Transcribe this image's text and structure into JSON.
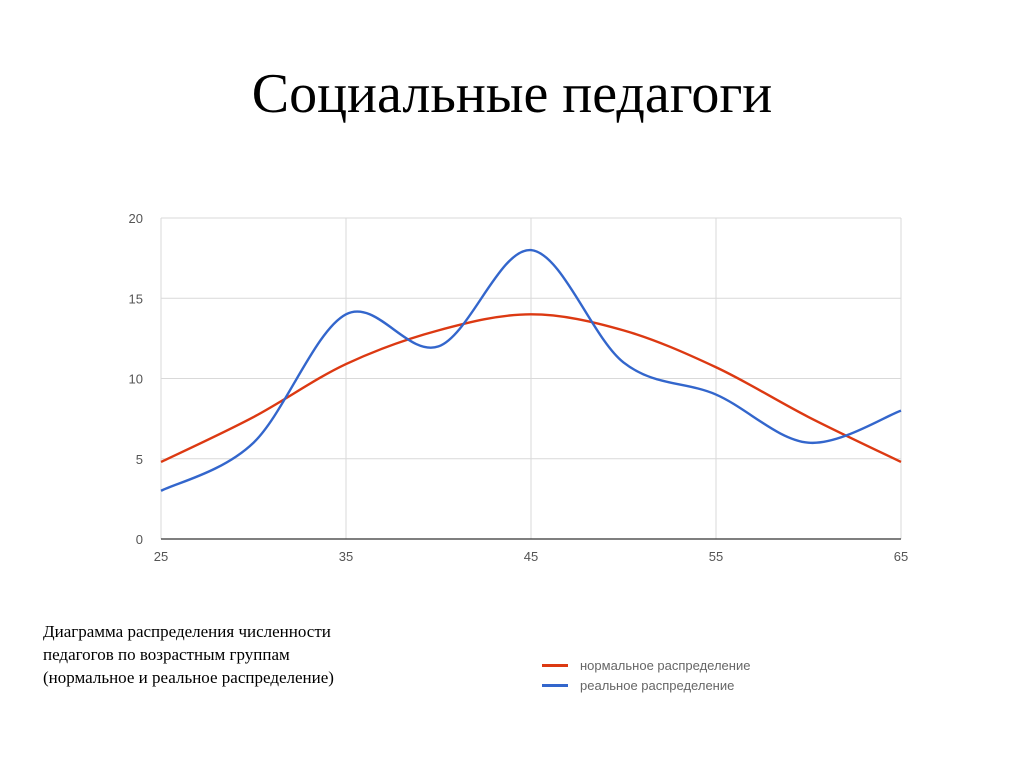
{
  "title": "Социальные педагоги",
  "caption": {
    "line1": "Диаграмма распределения численности",
    "line2": "педагогов по возрастным группам",
    "line3": "(нормальное и реальное распределение)"
  },
  "legend": [
    {
      "label": "нормальное распределение",
      "color": "#dc3912"
    },
    {
      "label": "реальное распределение",
      "color": "#3366cc"
    }
  ],
  "chart_data": {
    "type": "line",
    "title": "Социальные педагоги",
    "xlabel": "",
    "ylabel": "",
    "x": [
      25,
      30,
      35,
      40,
      45,
      50,
      55,
      60,
      65
    ],
    "xticks": [
      25,
      35,
      45,
      55,
      65
    ],
    "yticks": [
      0,
      5,
      10,
      15,
      20
    ],
    "xlim": [
      25,
      65
    ],
    "ylim": [
      0,
      20
    ],
    "grid": true,
    "legend_position": "bottom-right",
    "series": [
      {
        "name": "нормальное распределение",
        "color": "#dc3912",
        "values": [
          4.8,
          7.6,
          10.9,
          13.0,
          14.0,
          13.0,
          10.7,
          7.6,
          4.8
        ]
      },
      {
        "name": "реальное распределение",
        "color": "#3366cc",
        "values": [
          3,
          6,
          14,
          12,
          18,
          11,
          9,
          6,
          8
        ]
      }
    ]
  }
}
